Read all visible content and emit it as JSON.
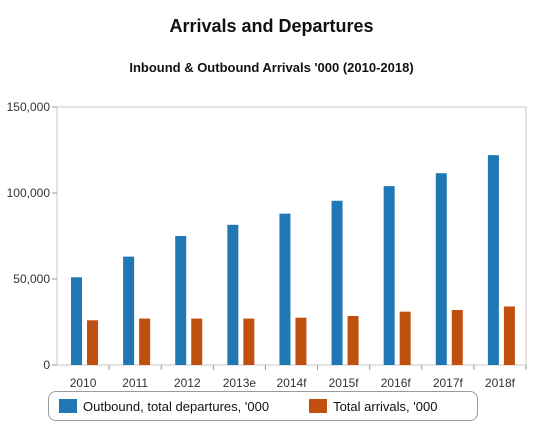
{
  "chart_data": {
    "type": "bar",
    "title": "Arrivals and Departures",
    "subtitle": "Inbound & Outbound Arrivals '000 (2010-2018)",
    "xlabel": "",
    "ylabel": "",
    "ylim": [
      0,
      150000
    ],
    "yticks": [
      0,
      50000,
      100000,
      150000
    ],
    "ytick_labels": [
      "0",
      "50,000",
      "100,000",
      "150,000"
    ],
    "grid": false,
    "legend_position": "bottom",
    "categories": [
      "2010",
      "2011",
      "2012",
      "2013e",
      "2014f",
      "2015f",
      "2016f",
      "2017f",
      "2018f"
    ],
    "series": [
      {
        "name": "Outbound, total departures, '000",
        "color": "#1f77b4",
        "values": [
          51000,
          63000,
          75000,
          81500,
          88000,
          95500,
          104000,
          111500,
          122000
        ]
      },
      {
        "name": "Total arrivals, '000",
        "color": "#c0500f",
        "values": [
          26000,
          27000,
          27000,
          27000,
          27500,
          28500,
          31000,
          32000,
          34000
        ]
      }
    ]
  }
}
